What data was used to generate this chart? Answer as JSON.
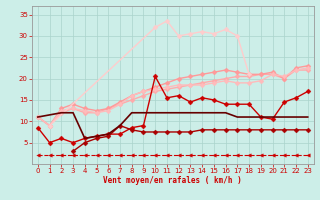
{
  "bg_color": "#cceee8",
  "grid_color": "#aad4cc",
  "xlabel": "Vent moyen/en rafales ( km/h )",
  "xlabel_color": "#cc0000",
  "tick_color": "#cc0000",
  "xlim": [
    -0.5,
    23.5
  ],
  "ylim": [
    0,
    37
  ],
  "yticks": [
    5,
    10,
    15,
    20,
    25,
    30,
    35
  ],
  "xticks": [
    0,
    1,
    2,
    3,
    4,
    5,
    6,
    7,
    8,
    9,
    10,
    11,
    12,
    13,
    14,
    15,
    16,
    17,
    18,
    19,
    20,
    21,
    22,
    23
  ],
  "lines": [
    {
      "x": [
        0,
        1,
        2,
        3,
        4,
        5,
        6,
        7,
        8,
        9,
        10,
        11,
        12,
        13,
        14,
        15,
        16,
        17,
        18,
        19,
        20,
        21,
        22,
        23
      ],
      "y": [
        2,
        2,
        2,
        2,
        2,
        2,
        2,
        2,
        2,
        2,
        2,
        2,
        2,
        2,
        2,
        2,
        2,
        2,
        2,
        2,
        2,
        2,
        2,
        2
      ],
      "color": "#cc0000",
      "lw": 0.8,
      "marker": "<",
      "ms": 2.5,
      "linestyle": "--"
    },
    {
      "x": [
        0,
        1,
        2,
        3,
        4,
        5,
        6,
        7,
        8,
        9,
        10,
        11,
        12,
        13,
        14,
        15,
        16,
        17,
        18,
        19,
        20,
        21,
        22,
        23
      ],
      "y": [
        11,
        9,
        12,
        13,
        12,
        12,
        13,
        14,
        15,
        16,
        17,
        17.5,
        18,
        18.5,
        19,
        19.5,
        20,
        20.5,
        20.5,
        21,
        21,
        20,
        22,
        22
      ],
      "color": "#ffaaaa",
      "lw": 1.0,
      "marker": "D",
      "ms": 2.5,
      "linestyle": "-"
    },
    {
      "x": [
        0,
        1,
        2,
        3,
        4,
        5,
        6,
        7,
        8,
        9,
        10,
        11,
        12,
        13,
        14,
        15,
        16,
        17,
        18,
        19,
        20,
        21,
        22,
        23
      ],
      "y": [
        11,
        9,
        13,
        14,
        13,
        12.5,
        13,
        14.5,
        16,
        17,
        18,
        19,
        20,
        20.5,
        21,
        21.5,
        22,
        21.5,
        21,
        21,
        21.5,
        20,
        22.5,
        23
      ],
      "color": "#ff9999",
      "lw": 1.0,
      "marker": "D",
      "ms": 2.5,
      "linestyle": "-"
    },
    {
      "x": [
        0,
        1,
        2,
        3,
        4,
        5,
        6,
        7,
        8,
        9,
        10,
        11,
        12,
        13,
        14,
        15,
        16,
        17,
        18,
        19,
        20,
        21,
        22,
        23
      ],
      "y": [
        11,
        9,
        12.5,
        13,
        12.5,
        12,
        12.5,
        14,
        16,
        17,
        17.5,
        18,
        18.5,
        18.5,
        18.5,
        19,
        19.5,
        19,
        19,
        19.5,
        21,
        20.5,
        22,
        22.5
      ],
      "color": "#ffbbbb",
      "lw": 1.0,
      "marker": "D",
      "ms": 2.5,
      "linestyle": "-"
    },
    {
      "x": [
        1,
        10,
        11,
        12,
        13,
        14,
        15,
        16,
        17,
        18
      ],
      "y": [
        9,
        32,
        33.5,
        30,
        30.5,
        31,
        30.5,
        31.5,
        30,
        21
      ],
      "color": "#ffcccc",
      "lw": 1.0,
      "marker": "D",
      "ms": 2.5,
      "linestyle": "-"
    },
    {
      "x": [
        0,
        1,
        2,
        3,
        4,
        5,
        6,
        7,
        8,
        9,
        10,
        11,
        12,
        13,
        14,
        15,
        16,
        17,
        18,
        19,
        20,
        21,
        22,
        23
      ],
      "y": [
        8.5,
        5,
        6,
        5,
        6,
        6.5,
        7,
        7,
        8.5,
        9,
        20.5,
        15.5,
        16,
        14.5,
        15.5,
        15,
        14,
        14,
        14,
        11,
        10.5,
        14.5,
        15.5,
        17
      ],
      "color": "#cc0000",
      "lw": 1.0,
      "marker": "D",
      "ms": 2.5,
      "linestyle": "-"
    },
    {
      "x": [
        3,
        4,
        5,
        6,
        7,
        8,
        9,
        10,
        11,
        12,
        13,
        14,
        15,
        16,
        17,
        18,
        19,
        20,
        21,
        22,
        23
      ],
      "y": [
        3,
        5,
        6,
        6.5,
        9,
        8,
        7.5,
        7.5,
        7.5,
        7.5,
        7.5,
        8,
        8,
        8,
        8,
        8,
        8,
        8,
        8,
        8,
        8
      ],
      "color": "#aa0000",
      "lw": 1.0,
      "marker": "D",
      "ms": 2.5,
      "linestyle": "-"
    },
    {
      "x": [
        0,
        2,
        3,
        4,
        5,
        6,
        7,
        8,
        9,
        10,
        11,
        12,
        13,
        14,
        15,
        16,
        17,
        18,
        19,
        20,
        21,
        22,
        23
      ],
      "y": [
        11,
        12,
        12,
        6,
        6.5,
        7,
        9,
        12,
        12,
        12,
        12,
        12,
        12,
        12,
        12,
        12,
        11,
        11,
        11,
        11,
        11,
        11,
        11
      ],
      "color": "#660000",
      "lw": 1.2,
      "marker": null,
      "ms": 0,
      "linestyle": "-"
    }
  ]
}
